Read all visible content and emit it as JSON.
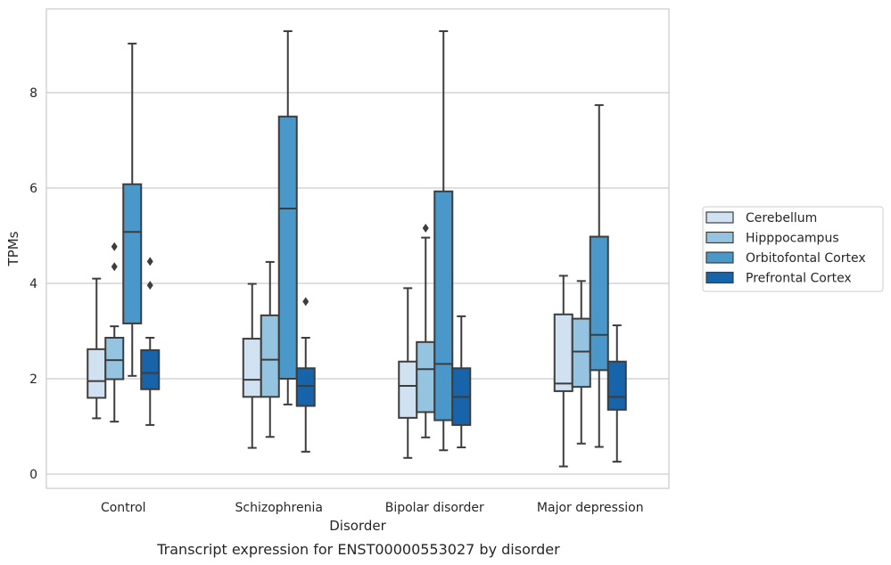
{
  "chart_data": {
    "type": "box",
    "categories": [
      "Control",
      "Schizophrenia",
      "Bipolar disorder",
      "Major depression"
    ],
    "xlabel": "Disorder",
    "ylabel": "TPMs",
    "caption": "Transcript expression for ENST00000553027 by disorder",
    "ylim": [
      -0.3,
      9.8
    ],
    "yticks": [
      0,
      2,
      4,
      6,
      8
    ],
    "grid": true,
    "legend_position": "right",
    "series": [
      {
        "name": "Cerebellum",
        "color": "#d0e1f2",
        "boxes": [
          {
            "q1": 1.6,
            "median": 1.95,
            "q3": 2.62,
            "whisker_low": 1.17,
            "whisker_high": 4.1,
            "outliers": []
          },
          {
            "q1": 1.62,
            "median": 1.98,
            "q3": 2.84,
            "whisker_low": 0.55,
            "whisker_high": 3.99,
            "outliers": []
          },
          {
            "q1": 1.18,
            "median": 1.85,
            "q3": 2.36,
            "whisker_low": 0.34,
            "whisker_high": 3.9,
            "outliers": []
          },
          {
            "q1": 1.74,
            "median": 1.9,
            "q3": 3.35,
            "whisker_low": 0.16,
            "whisker_high": 4.16,
            "outliers": []
          }
        ]
      },
      {
        "name": "Hipppocampus",
        "color": "#94c4df",
        "boxes": [
          {
            "q1": 1.99,
            "median": 2.39,
            "q3": 2.86,
            "whisker_low": 1.1,
            "whisker_high": 3.1,
            "outliers": [
              4.35,
              4.77
            ]
          },
          {
            "q1": 1.62,
            "median": 2.4,
            "q3": 3.33,
            "whisker_low": 0.78,
            "whisker_high": 4.45,
            "outliers": []
          },
          {
            "q1": 1.3,
            "median": 2.2,
            "q3": 2.77,
            "whisker_low": 0.77,
            "whisker_high": 4.96,
            "outliers": [
              5.16
            ]
          },
          {
            "q1": 1.83,
            "median": 2.57,
            "q3": 3.26,
            "whisker_low": 0.64,
            "whisker_high": 4.05,
            "outliers": []
          }
        ]
      },
      {
        "name": "Orbitofontal Cortex",
        "color": "#4a98c9",
        "boxes": [
          {
            "q1": 3.16,
            "median": 5.08,
            "q3": 6.08,
            "whisker_low": 2.06,
            "whisker_high": 9.03,
            "outliers": []
          },
          {
            "q1": 2.0,
            "median": 5.57,
            "q3": 7.5,
            "whisker_low": 1.46,
            "whisker_high": 9.29,
            "outliers": []
          },
          {
            "q1": 1.13,
            "median": 2.31,
            "q3": 5.93,
            "whisker_low": 0.5,
            "whisker_high": 9.29,
            "outliers": []
          },
          {
            "q1": 2.18,
            "median": 2.92,
            "q3": 4.98,
            "whisker_low": 0.57,
            "whisker_high": 7.74,
            "outliers": []
          }
        ]
      },
      {
        "name": "Prefrontal Cortex",
        "color": "#1764ab",
        "boxes": [
          {
            "q1": 1.78,
            "median": 2.12,
            "q3": 2.6,
            "whisker_low": 1.03,
            "whisker_high": 2.86,
            "outliers": [
              3.96,
              4.46
            ]
          },
          {
            "q1": 1.43,
            "median": 1.85,
            "q3": 2.22,
            "whisker_low": 0.47,
            "whisker_high": 2.86,
            "outliers": [
              3.62
            ]
          },
          {
            "q1": 1.03,
            "median": 1.62,
            "q3": 2.22,
            "whisker_low": 0.56,
            "whisker_high": 3.31,
            "outliers": []
          },
          {
            "q1": 1.35,
            "median": 1.62,
            "q3": 2.36,
            "whisker_low": 0.26,
            "whisker_high": 3.12,
            "outliers": []
          }
        ]
      }
    ]
  }
}
